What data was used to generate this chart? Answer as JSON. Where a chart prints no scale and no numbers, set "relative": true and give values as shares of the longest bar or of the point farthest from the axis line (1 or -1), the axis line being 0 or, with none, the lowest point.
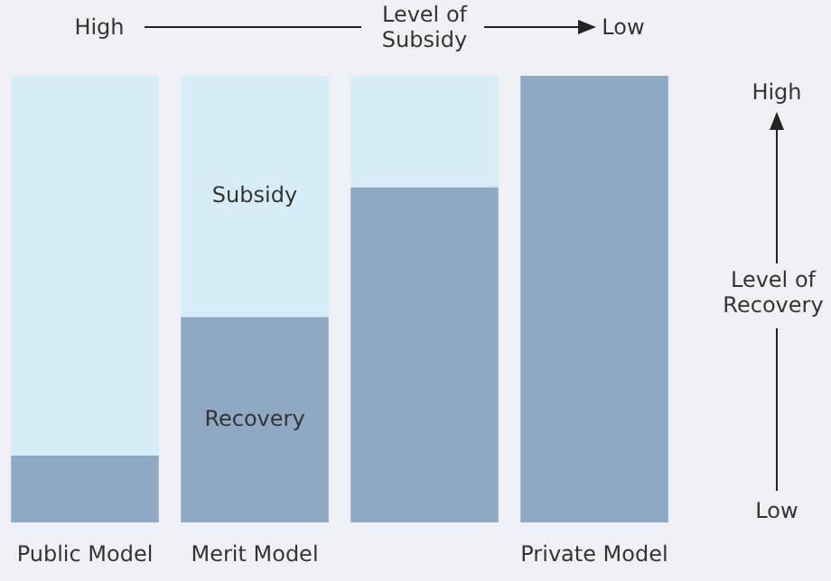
{
  "chart_data": {
    "type": "bar",
    "stacked": true,
    "relative": true,
    "legend": false,
    "categories": [
      "Public Model",
      "Merit Model",
      null,
      "Private Model"
    ],
    "series": [
      {
        "name": "Recovery",
        "color": "#8fa9c4",
        "values": [
          0.15,
          0.46,
          0.75,
          1
        ]
      },
      {
        "name": "Subsidy",
        "color": "#d6ecf7",
        "values": [
          0.85,
          0.54,
          0.25,
          0
        ]
      }
    ],
    "annotations": [
      "High",
      "Level of Subsidy",
      "Low",
      "High",
      "Level of Recovery",
      "Low"
    ]
  }
}
